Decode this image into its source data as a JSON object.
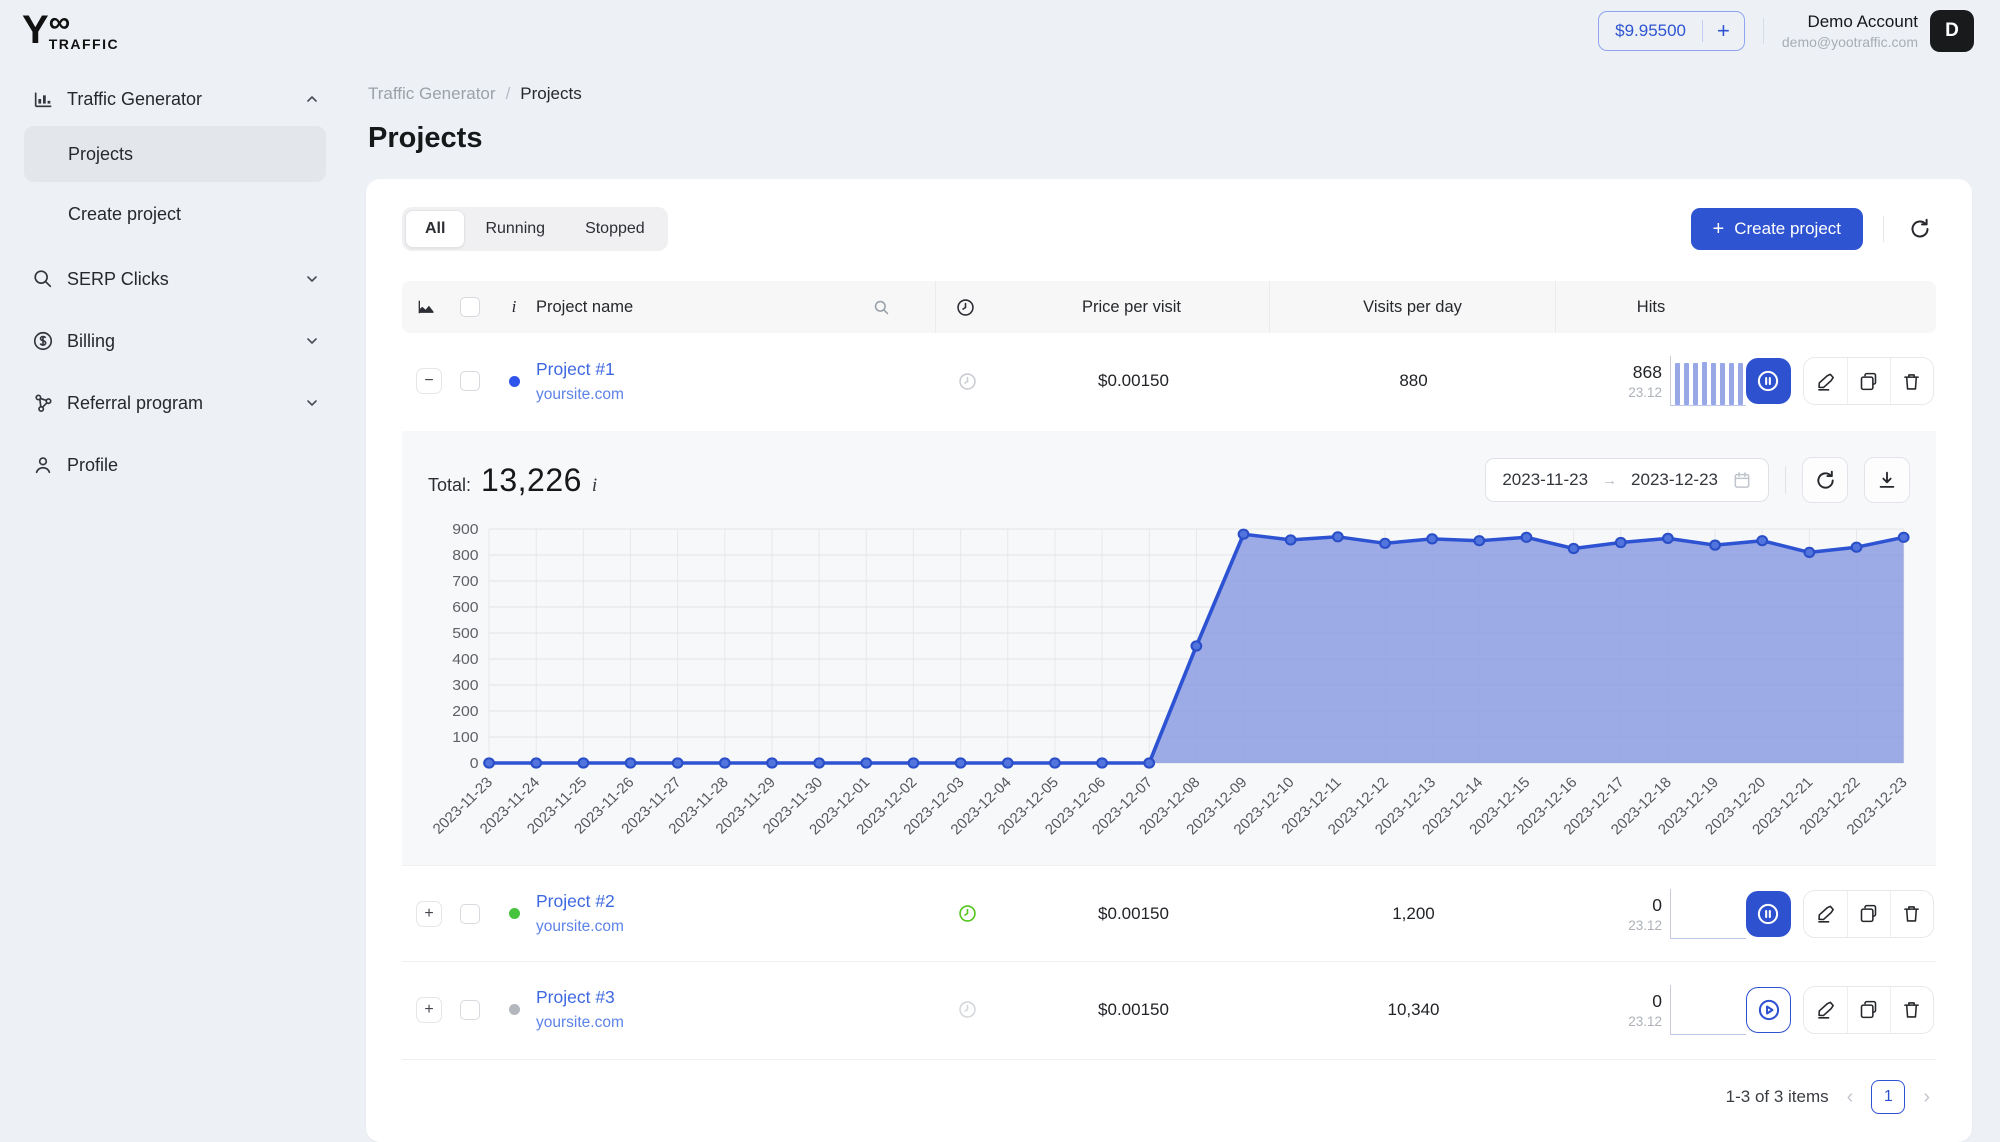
{
  "brand": {
    "logo_y": "Y",
    "logo_infinity": "∞",
    "logo_word": "TRAFFIC"
  },
  "header": {
    "balance": "$9.95500",
    "add_funds_label": "+",
    "account_name": "Demo Account",
    "account_email": "demo@yootraffic.com",
    "avatar_letter": "D"
  },
  "sidebar": {
    "items": [
      {
        "label": "Traffic Generator"
      },
      {
        "label": "Projects"
      },
      {
        "label": "Create project"
      },
      {
        "label": "SERP Clicks"
      },
      {
        "label": "Billing"
      },
      {
        "label": "Referral program"
      },
      {
        "label": "Profile"
      }
    ]
  },
  "breadcrumb": {
    "parent": "Traffic Generator",
    "separator": "/",
    "current": "Projects"
  },
  "page": {
    "title": "Projects"
  },
  "tabs": {
    "all": "All",
    "running": "Running",
    "stopped": "Stopped"
  },
  "toolbar": {
    "create_plus": "+",
    "create_label": "Create project"
  },
  "table": {
    "headers": {
      "info": "i",
      "project": "Project name",
      "price": "Price per visit",
      "visits": "Visits per day",
      "hits": "Hits"
    }
  },
  "rows": [
    {
      "expand": "−",
      "name": "Project #1",
      "domain": "yoursite.com",
      "status_color": "#2f54eb",
      "clock_color": "#c9ccd2",
      "price": "$0.00150",
      "visits": "880",
      "hits": "868",
      "hits_date": "23.12",
      "minibars": [
        852,
        868,
        860,
        870,
        862,
        850,
        861,
        868
      ]
    },
    {
      "expand": "+",
      "name": "Project #2",
      "domain": "yoursite.com",
      "status_color": "#45c33c",
      "clock_color": "#52c41a",
      "price": "$0.00150",
      "visits": "1,200",
      "hits": "0",
      "hits_date": "23.12",
      "minibars": []
    },
    {
      "expand": "+",
      "name": "Project #3",
      "domain": "yoursite.com",
      "status_color": "#b4b7bd",
      "clock_color": "#d4d7dc",
      "price": "$0.00150",
      "visits": "10,340",
      "hits": "0",
      "hits_date": "23.12",
      "minibars": []
    }
  ],
  "panel": {
    "total_label": "Total:",
    "total_value": "13,226",
    "info": "i",
    "date_from": "2023-11-23",
    "date_arrow": "→",
    "date_to": "2023-12-23"
  },
  "chart_data": {
    "type": "area",
    "title": "Project #1 daily hits",
    "xlabel": "",
    "ylabel": "",
    "ylim": [
      0,
      900
    ],
    "yticks": [
      0,
      100,
      200,
      300,
      400,
      500,
      600,
      700,
      800,
      900
    ],
    "grid": true,
    "legend": false,
    "line_color": "#2d53d2",
    "fill_color": "#8c9ce2",
    "x": [
      "2023-11-23",
      "2023-11-24",
      "2023-11-25",
      "2023-11-26",
      "2023-11-27",
      "2023-11-28",
      "2023-11-29",
      "2023-11-30",
      "2023-12-01",
      "2023-12-02",
      "2023-12-03",
      "2023-12-04",
      "2023-12-05",
      "2023-12-06",
      "2023-12-07",
      "2023-12-08",
      "2023-12-09",
      "2023-12-10",
      "2023-12-11",
      "2023-12-12",
      "2023-12-13",
      "2023-12-14",
      "2023-12-15",
      "2023-12-16",
      "2023-12-17",
      "2023-12-18",
      "2023-12-19",
      "2023-12-20",
      "2023-12-21",
      "2023-12-22",
      "2023-12-23"
    ],
    "values": [
      0,
      0,
      0,
      0,
      0,
      0,
      0,
      0,
      0,
      0,
      0,
      0,
      0,
      0,
      0,
      450,
      880,
      858,
      870,
      845,
      862,
      855,
      868,
      825,
      848,
      864,
      838,
      855,
      810,
      830,
      868
    ]
  },
  "pagination": {
    "summary": "1-3 of 3 items",
    "prev": "‹",
    "page": "1",
    "next": "›"
  }
}
